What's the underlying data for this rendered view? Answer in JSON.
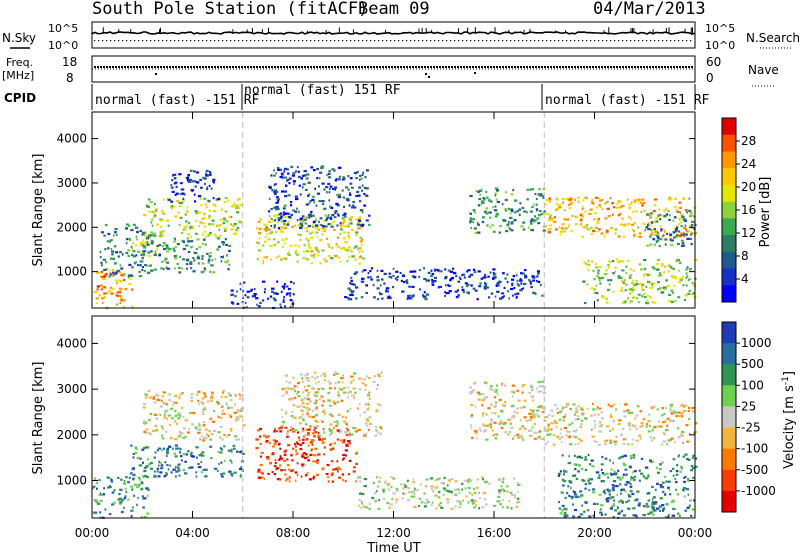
{
  "header": {
    "station": "South Pole Station (fitACF)",
    "beam": "Beam 09",
    "date": "04/Mar/2013"
  },
  "status_labels": {
    "nsky": "N.Sky",
    "freq_line1": "Freq.",
    "freq_line2": "[MHz]",
    "cpid": "CPID",
    "nsearch": "N.Search",
    "nave": "Nave",
    "nsky_ticks": [
      "10^5",
      "10^0"
    ],
    "freq_ticks": [
      "18",
      "8"
    ],
    "nsearch_ticks": [
      "10^5",
      "10^0"
    ],
    "nave_ticks": [
      "60",
      "0"
    ]
  },
  "cpid_segments": [
    {
      "label": "normal (fast) -151 RF"
    },
    {
      "label": "normal (fast) 151 RF"
    },
    {
      "label": "normal (fast) -151 RF"
    }
  ],
  "chart_data": [
    {
      "type": "heatmap",
      "panel": "power",
      "ylabel": "Slant Range [km]",
      "xlabel": "Time UT",
      "x_ticks": [
        "00:00",
        "04:00",
        "08:00",
        "12:00",
        "16:00",
        "20:00",
        "00:00"
      ],
      "x_range_hours": [
        0,
        24
      ],
      "y_ticks": [
        1000,
        2000,
        3000,
        4000
      ],
      "ylim": [
        180,
        4600
      ],
      "colorbar": {
        "label": "Power [dB]",
        "ticks": [
          "28",
          "24",
          "20",
          "16",
          "12",
          "8",
          "4"
        ],
        "colors": [
          "#e00000",
          "#ff5000",
          "#ff9600",
          "#ffc800",
          "#e6e600",
          "#8cd23c",
          "#3caa50",
          "#2d7d64",
          "#1e5a8c",
          "#1432c8",
          "#0000ff"
        ]
      },
      "regions": [
        {
          "t0": 0.0,
          "t1": 1.6,
          "r0": 200,
          "r1": 1100,
          "level": 0.75
        },
        {
          "t0": 0.3,
          "t1": 2.4,
          "r0": 900,
          "r1": 2100,
          "level": 0.3
        },
        {
          "t0": 1.4,
          "t1": 2.6,
          "r0": 1350,
          "r1": 1800,
          "level": 0.55
        },
        {
          "t0": 2.0,
          "t1": 5.9,
          "r0": 1800,
          "r1": 2700,
          "level": 0.55
        },
        {
          "t0": 2.4,
          "t1": 5.5,
          "r0": 1000,
          "r1": 1800,
          "level": 0.35
        },
        {
          "t0": 3.0,
          "t1": 5.0,
          "r0": 2600,
          "r1": 3300,
          "level": 0.15
        },
        {
          "t0": 6.5,
          "t1": 10.8,
          "r0": 1200,
          "r1": 2300,
          "level": 0.6
        },
        {
          "t0": 7.0,
          "t1": 11.0,
          "r0": 2000,
          "r1": 3400,
          "level": 0.2
        },
        {
          "t0": 5.5,
          "t1": 8.0,
          "r0": 200,
          "r1": 800,
          "level": 0.1
        },
        {
          "t0": 10.0,
          "t1": 18.0,
          "r0": 400,
          "r1": 1100,
          "level": 0.15
        },
        {
          "t0": 15.0,
          "t1": 18.0,
          "r0": 1900,
          "r1": 2900,
          "level": 0.35
        },
        {
          "t0": 18.0,
          "t1": 24.0,
          "r0": 1800,
          "r1": 2700,
          "level": 0.7
        },
        {
          "t0": 19.5,
          "t1": 24.0,
          "r0": 300,
          "r1": 1300,
          "level": 0.5
        },
        {
          "t0": 22.0,
          "t1": 24.0,
          "r0": 1600,
          "r1": 2400,
          "level": 0.3
        }
      ]
    },
    {
      "type": "heatmap",
      "panel": "velocity",
      "ylabel": "Slant Range [km]",
      "xlabel": "Time UT",
      "x_ticks": [
        "00:00",
        "04:00",
        "08:00",
        "12:00",
        "16:00",
        "20:00",
        "00:00"
      ],
      "x_range_hours": [
        0,
        24
      ],
      "y_ticks": [
        1000,
        2000,
        3000,
        4000
      ],
      "ylim": [
        180,
        4600
      ],
      "colorbar": {
        "label": "Velocity [m s^-1]",
        "ticks": [
          "1000",
          "500",
          "100",
          "25",
          "-25",
          "-100",
          "-500",
          "-1000"
        ],
        "colors": [
          "#1e3cb4",
          "#286ea0",
          "#2d9650",
          "#6ed250",
          "#c8c8c8",
          "#f5b43c",
          "#ff7800",
          "#ff3c00",
          "#e60000"
        ]
      },
      "regions": [
        {
          "t0": 0.0,
          "t1": 2.2,
          "r0": 200,
          "r1": 1100,
          "level": 0.75
        },
        {
          "t0": 1.5,
          "t1": 6.0,
          "r0": 1100,
          "r1": 1800,
          "level": 0.8
        },
        {
          "t0": 2.0,
          "t1": 6.0,
          "r0": 1900,
          "r1": 3000,
          "level": 0.45
        },
        {
          "t0": 6.5,
          "t1": 10.5,
          "r0": 1000,
          "r1": 2200,
          "level": 0.15
        },
        {
          "t0": 7.5,
          "t1": 11.5,
          "r0": 2000,
          "r1": 3400,
          "level": 0.45
        },
        {
          "t0": 10.5,
          "t1": 17.0,
          "r0": 400,
          "r1": 1100,
          "level": 0.55
        },
        {
          "t0": 15.0,
          "t1": 18.0,
          "r0": 1900,
          "r1": 3200,
          "level": 0.45
        },
        {
          "t0": 18.0,
          "t1": 24.0,
          "r0": 1800,
          "r1": 2700,
          "level": 0.45
        },
        {
          "t0": 18.5,
          "t1": 24.0,
          "r0": 200,
          "r1": 1600,
          "level": 0.78
        }
      ]
    }
  ]
}
